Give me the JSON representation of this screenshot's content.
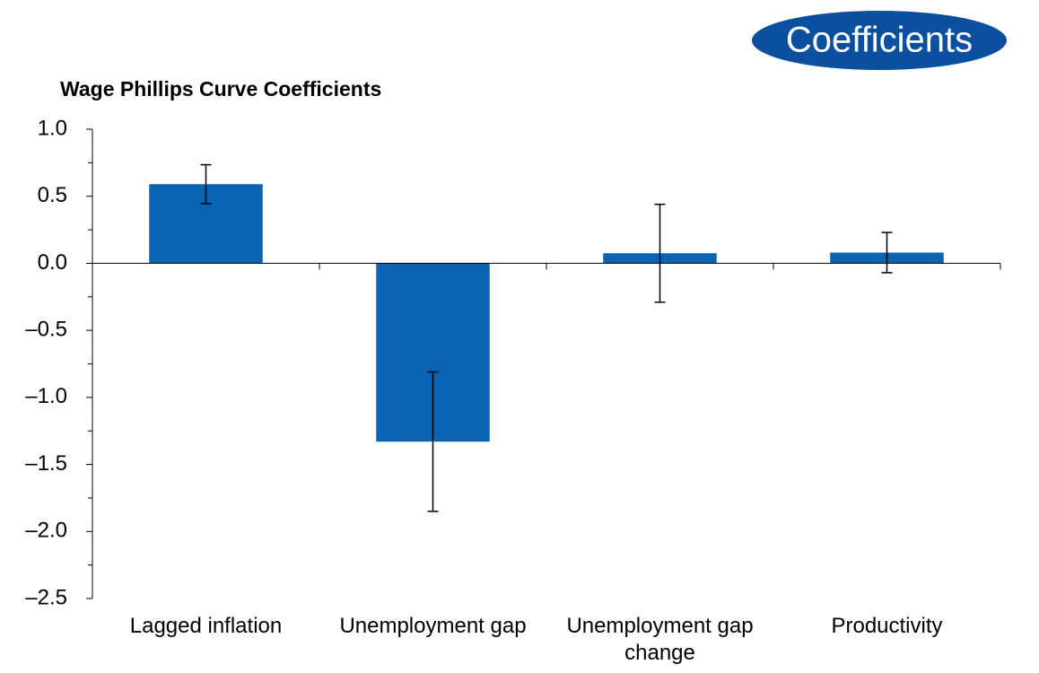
{
  "chart_data": {
    "type": "bar",
    "badge": "Coefficients",
    "title": "Wage Phillips Curve Coefficients",
    "categories": [
      "Lagged inflation",
      "Unemployment gap",
      "Unemployment gap change",
      "Productivity"
    ],
    "values": [
      0.59,
      -1.33,
      0.075,
      0.08
    ],
    "errors": [
      0.145,
      0.52,
      0.365,
      0.15
    ],
    "color": "#0b63b3",
    "ylim": [
      -2.5,
      1.0
    ],
    "yticks": [
      {
        "value": -2.5,
        "label": "–2.5"
      },
      {
        "value": -2.0,
        "label": "–2.0"
      },
      {
        "value": -1.5,
        "label": "–1.5"
      },
      {
        "value": -1.0,
        "label": "–1.0"
      },
      {
        "value": -0.5,
        "label": "–0.5"
      },
      {
        "value": 0,
        "label": "0.0"
      },
      0.5,
      {
        "value": 1.0,
        "label": "1.0"
      }
    ],
    "minor_yticks": [
      -2.25,
      -1.75,
      -1.25,
      -0.75,
      -0.25,
      0.25,
      0.75
    ]
  }
}
